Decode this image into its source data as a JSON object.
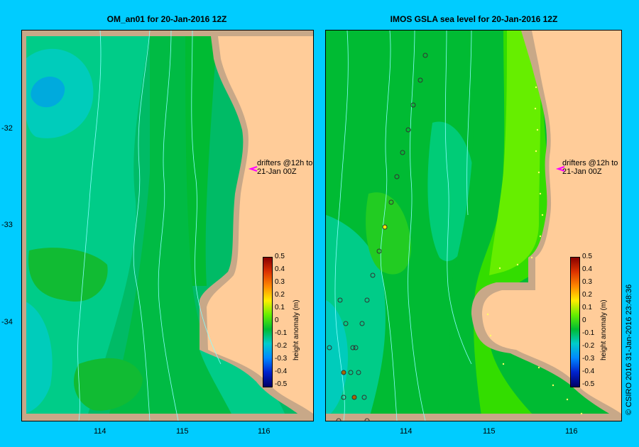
{
  "left_title": "OM_an01  for 20-Jan-2016 12Z",
  "right_title": "IMOS GSLA sea level  for 20-Jan-2016 12Z",
  "x_ticks": [
    "114",
    "115",
    "116"
  ],
  "y_ticks": [
    "-32",
    "-33",
    "-34"
  ],
  "drifters_line1": "drifters @12h to",
  "drifters_line2": "21-Jan 00Z",
  "colorbar_label": "height anomaly (m)",
  "colorbar_ticks": [
    "0.5",
    "0.4",
    "0.3",
    "0.2",
    "0.1",
    "0",
    "-0.1",
    "-0.2",
    "-0.3",
    "-0.4",
    "-0.5"
  ],
  "credit": "© CSIRO 2016   31-Jan-2016 23:48:36",
  "colors": {
    "background": "#00ccff",
    "land": "#ffcc99",
    "coast": "#c8a888",
    "green": "#00bb33",
    "lightgreen": "#66ee00",
    "teal": "#00cc99",
    "cyan": "#00ccdd",
    "contour": "#88ffff"
  }
}
